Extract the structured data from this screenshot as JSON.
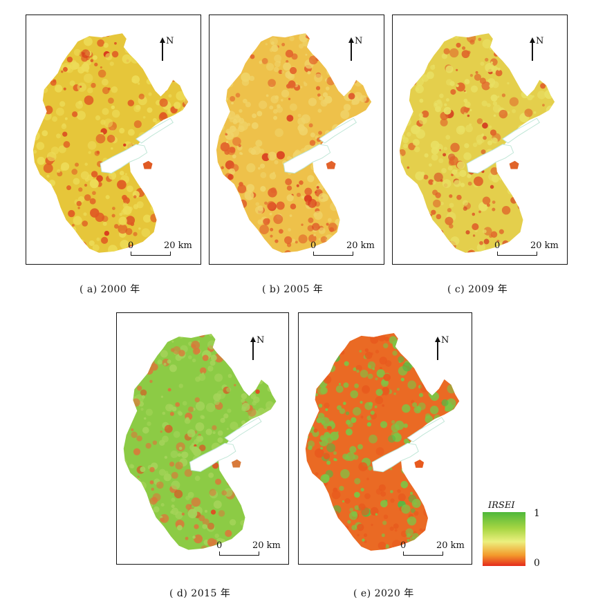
{
  "panels": [
    {
      "id": "a",
      "caption": "( a) 2000 年",
      "scale_start": "0",
      "scale_end": "20 km",
      "north": "N",
      "palette": {
        "base": "#e6c63a",
        "light": "#eddc58",
        "dark": "#e05a23",
        "accent": "#d8341c"
      }
    },
    {
      "id": "b",
      "caption": "( b) 2005 年",
      "scale_start": "0",
      "scale_end": "20 km",
      "north": "N",
      "palette": {
        "base": "#eec14a",
        "light": "#f0d46a",
        "dark": "#e2622b",
        "accent": "#d93a1e"
      }
    },
    {
      "id": "c",
      "caption": "( c) 2009 年",
      "scale_start": "0",
      "scale_end": "20 km",
      "north": "N",
      "palette": {
        "base": "#e4cf4c",
        "light": "#e9e064",
        "dark": "#e0642a",
        "accent": "#d43b1f"
      }
    },
    {
      "id": "d",
      "caption": "( d) 2015 年",
      "scale_start": "0",
      "scale_end": "20 km",
      "north": "N",
      "palette": {
        "base": "#8ccb45",
        "light": "#a5d45a",
        "dark": "#d87a3a",
        "accent": "#e14b22"
      }
    },
    {
      "id": "e",
      "caption": "( e) 2020 年",
      "scale_start": "0",
      "scale_end": "20 km",
      "north": "N",
      "palette": {
        "base": "#ea6a24",
        "light": "#7cc646",
        "dark": "#e85a1e",
        "accent": "#58b843"
      }
    }
  ],
  "legend": {
    "title": "IRSEI",
    "max": "1",
    "min": "0",
    "colors": [
      "#4fb83a",
      "#ecf07e",
      "#e52a1c"
    ]
  }
}
